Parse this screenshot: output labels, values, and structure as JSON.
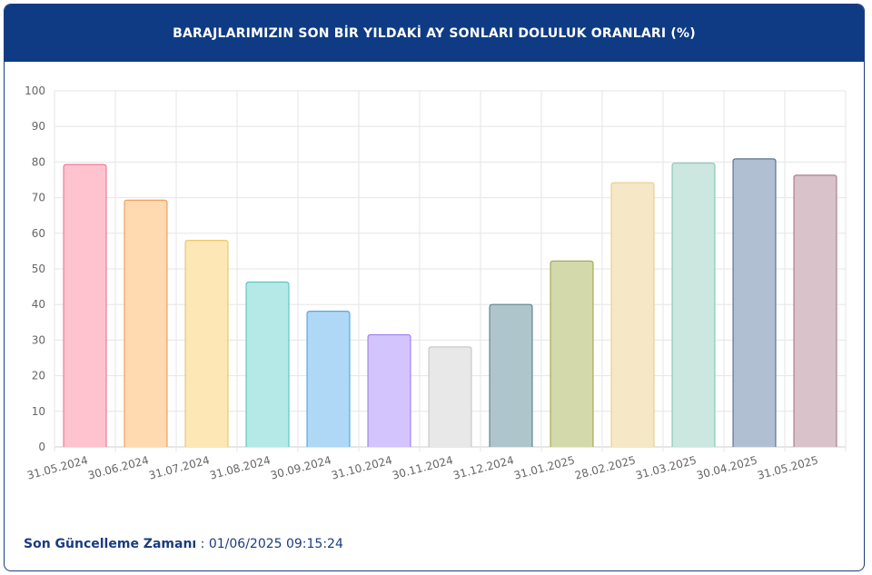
{
  "header": {
    "title": "BARAJLARIMIZIN SON BİR YILDAKİ AY SONLARI DOLULUK ORANLARI (%)"
  },
  "footer": {
    "label": "Son Güncelleme Zamanı",
    "separator": " : ",
    "value": "01/06/2025 09:15:24"
  },
  "chart_data": {
    "type": "bar",
    "title": "BARAJLARIMIZIN SON BİR YILDAKİ AY SONLARI DOLULUK ORANLARI (%)",
    "xlabel": "",
    "ylabel": "",
    "ylim": [
      0,
      100
    ],
    "yticks": [
      0,
      10,
      20,
      30,
      40,
      50,
      60,
      70,
      80,
      90,
      100
    ],
    "grid": true,
    "legend": "none",
    "categories": [
      "31.05.2024",
      "30.06.2024",
      "31.07.2024",
      "31.08.2024",
      "30.09.2024",
      "31.10.2024",
      "30.11.2024",
      "31.12.2024",
      "31.01.2025",
      "28.02.2025",
      "31.03.2025",
      "30.04.2025",
      "31.05.2025"
    ],
    "values": [
      79.3,
      69.3,
      58.0,
      46.3,
      38.1,
      31.5,
      28.1,
      40.0,
      52.2,
      74.2,
      79.7,
      80.9,
      76.3
    ],
    "fill_colors": [
      "#ffc2cf",
      "#ffd9b0",
      "#fde8b5",
      "#b5e9e8",
      "#aed8f6",
      "#d3c4fe",
      "#e8e8e8",
      "#aec6cb",
      "#d4d9ab",
      "#f6e8c6",
      "#cbe7df",
      "#b1bfd2",
      "#d9c2c9"
    ],
    "border_colors": [
      "#f07a98",
      "#f0a060",
      "#ecc770",
      "#5dc6c5",
      "#5aa8e0",
      "#a483f5",
      "#c8c8c8",
      "#5e858e",
      "#a6ab55",
      "#e8d090",
      "#8ccab4",
      "#5d7594",
      "#a9808e"
    ]
  }
}
